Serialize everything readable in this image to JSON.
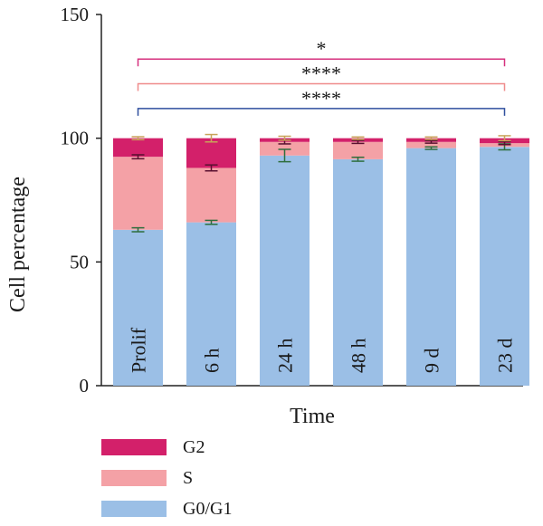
{
  "chart_data": {
    "type": "bar",
    "stacked": true,
    "xlabel": "Time",
    "ylabel": "Cell percentage",
    "ylim": [
      0,
      150
    ],
    "yticks": [
      0,
      50,
      100,
      150
    ],
    "categories": [
      "Prolif",
      "6 h",
      "24 h",
      "48 h",
      "9 d",
      "23 d"
    ],
    "series": [
      {
        "name": "G0/G1",
        "color": "#9bbfe6",
        "values": [
          63,
          66,
          93,
          91.5,
          96,
          96.5
        ],
        "errors": [
          0.8,
          0.8,
          2.5,
          0.8,
          0.5,
          1.2
        ],
        "error_color": "#2e6e3e"
      },
      {
        "name": "S",
        "color": "#f4a1a6",
        "values": [
          29.5,
          22,
          5.5,
          7,
          2.5,
          1.5
        ],
        "errors": [
          0.8,
          1.2,
          0.8,
          0.6,
          0.5,
          0.6
        ],
        "error_color": "#5a1030"
      },
      {
        "name": "G2",
        "color": "#d3206a",
        "values": [
          7.5,
          12,
          1.5,
          1.5,
          1.5,
          2
        ],
        "errors": [
          0.6,
          1.5,
          0.8,
          0.5,
          0.5,
          1.0
        ],
        "error_color": "#c9a35a"
      }
    ],
    "legend_order": [
      "G2",
      "S",
      "G0/G1"
    ],
    "legend_position": "bottom-left",
    "significance": [
      {
        "label": "*",
        "level": 132,
        "color": "#d6307e",
        "from": "Prolif",
        "to": "23 d"
      },
      {
        "label": "****",
        "level": 122,
        "color": "#ef8c8c",
        "from": "Prolif",
        "to": "23 d"
      },
      {
        "label": "****",
        "level": 112,
        "color": "#2f4f9e",
        "from": "Prolif",
        "to": "23 d"
      }
    ]
  }
}
